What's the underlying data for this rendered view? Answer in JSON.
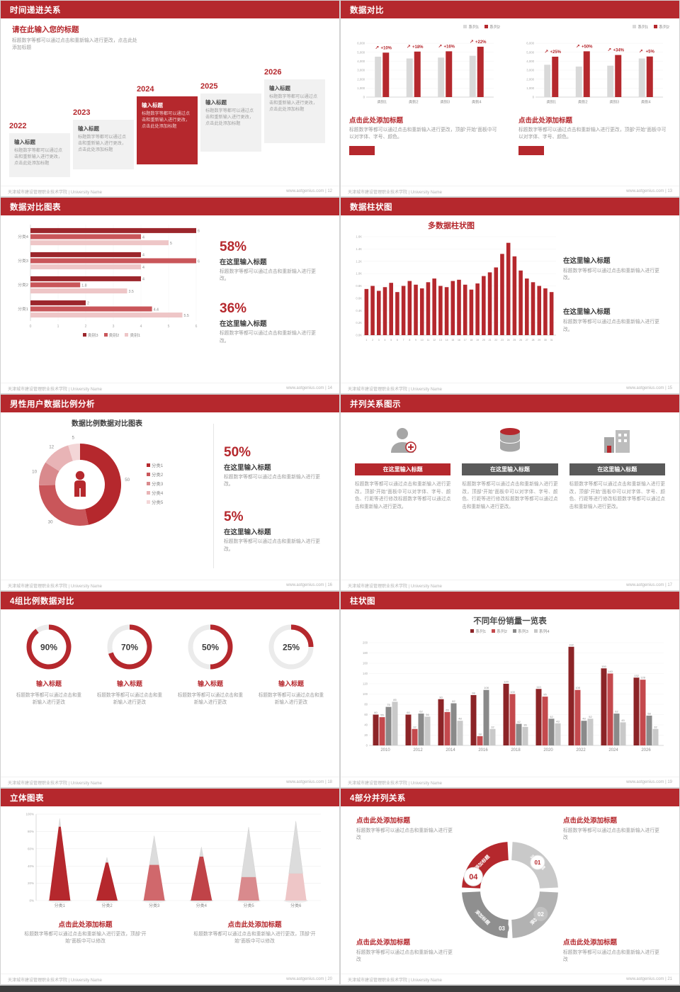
{
  "accent": "#b5282d",
  "footer": {
    "left": "天津城市建设管理职业技术学院 | University Name"
  },
  "slides": [
    {
      "title": "时间递进关系",
      "footer_right": "www.aotgenius.com | 12",
      "intro_title": "请在此输入您的标题",
      "intro_body": "标题数字等都可以通过点击和重新输入进行更改，点击此处添加标题",
      "steps": [
        {
          "year": "2022",
          "head": "输入标题",
          "body": "标题数字等都可以通过点击和重新输入进行更改，点击此处添加标题"
        },
        {
          "year": "2023",
          "head": "输入标题",
          "body": "标题数字等都可以通过点击和重新输入进行更改，点击此处添加标题"
        },
        {
          "year": "2024",
          "head": "输入标题",
          "body": "标题数字等都可以通过点击和重新输入进行更改，点击此处添加标题"
        },
        {
          "year": "2025",
          "head": "输入标题",
          "body": "标题数字等都可以通过点击和重新输入进行更改，点击此处添加标题"
        },
        {
          "year": "2026",
          "head": "输入标题",
          "body": "标题数字等都可以通过点击和重新输入进行更改，点击此处添加标题"
        }
      ]
    },
    {
      "title": "数据对比",
      "footer_right": "www.aotgenius.com | 13",
      "left": {
        "heading": "点击此处添加标题",
        "body": "标题数字等都可以通过点击和重新输入进行更改，顶部“开始”面板中可以对字体、字号、颜色。"
      },
      "right": {
        "heading": "点击此处添加标题",
        "body": "标题数字等都可以通过点击和重新输入进行更改，顶部“开始”面板中可以对字体、字号、颜色。"
      }
    },
    {
      "title": "数据对比图表",
      "footer_right": "www.aotgenius.com | 14",
      "stats": [
        {
          "value": "58%",
          "heading": "在这里输入标题",
          "body": "标题数字等都可以通过点击和重新输入进行更改。"
        },
        {
          "value": "36%",
          "heading": "在这里输入标题",
          "body": "标题数字等都可以通过点击和重新输入进行更改。"
        }
      ]
    },
    {
      "title": "数据柱状图",
      "footer_right": "www.aotgenius.com | 15",
      "chart_title": "多数据柱状图",
      "notes": [
        {
          "heading": "在这里输入标题",
          "body": "标题数字等都可以通过点击和重新输入进行更改。"
        },
        {
          "heading": "在这里输入标题",
          "body": "标题数字等都可以通过点击和重新输入进行更改。"
        }
      ]
    },
    {
      "title": "男性用户数据比例分析",
      "footer_right": "www.aotgenius.com | 16",
      "chart_title": "数据比例数据对比图表",
      "stats": [
        {
          "value": "50%",
          "heading": "在这里输入标题",
          "body": "标题数字等都可以通过点击和重新输入进行更改。"
        },
        {
          "value": "5%",
          "heading": "在这里输入标题",
          "body": "标题数字等都可以通过点击和重新输入进行更改。"
        }
      ]
    },
    {
      "title": "并列关系图示",
      "footer_right": "www.aotgenius.com | 17",
      "cols": [
        {
          "icon": "nurse-icon",
          "header": "在这里输入标题",
          "header_bg": "#b5282d",
          "body": "标题数字等都可以通过点击和重新输入进行更改，顶部“开始”面板中可以对字体、字号、颜色、行距等进行修改标题数字等都可以通过点击和重新输入进行更改。"
        },
        {
          "icon": "database-icon",
          "header": "在这里输入标题",
          "header_bg": "#5a5a5a",
          "body": "标题数字等都可以通过点击和重新输入进行更改，顶部“开始”面板中可以对字体、字号、颜色、行距等进行修改标题数字等都可以通过点击和重新输入进行更改。"
        },
        {
          "icon": "building-icon",
          "header": "在这里输入标题",
          "header_bg": "#5a5a5a",
          "body": "标题数字等都可以通过点击和重新输入进行更改，顶部“开始”面板中可以对字体、字号、颜色、行距等进行修改标题数字等都可以通过点击和重新输入进行更改。"
        }
      ]
    },
    {
      "title": "4组比例数据对比",
      "footer_right": "www.aotgenius.com | 18",
      "items": [
        {
          "heading": "输入标题",
          "body": "标题数字等都可以通过点击和重新输入进行更改"
        },
        {
          "heading": "输入标题",
          "body": "标题数字等都可以通过点击和重新输入进行更改"
        },
        {
          "heading": "输入标题",
          "body": "标题数字等都可以通过点击和重新输入进行更改"
        },
        {
          "heading": "输入标题",
          "body": "标题数字等都可以通过点击和重新输入进行更改"
        }
      ]
    },
    {
      "title": "柱状图",
      "footer_right": "www.aotgenius.com | 19",
      "chart_title": "不同年份销量一览表"
    },
    {
      "title": "立体图表",
      "footer_right": "www.aotgenius.com | 20",
      "notes": [
        {
          "heading": "点击此处添加标题",
          "body": "标题数字等都可以通过点击和重新输入进行更改，顶部“开始”面板中可以修改"
        },
        {
          "heading": "点击此处添加标题",
          "body": "标题数字等都可以通过点击和重新输入进行更改，顶部“开始”面板中可以修改"
        }
      ]
    },
    {
      "title": "4部分并列关系",
      "footer_right": "www.aotgenius.com | 21",
      "corners": [
        {
          "heading": "点击此处添加标题",
          "body": "标题数字等都可以通过点击和重新输入进行更改"
        },
        {
          "heading": "点击此处添加标题",
          "body": "标题数字等都可以通过点击和重新输入进行更改"
        },
        {
          "heading": "点击此处添加标题",
          "body": "标题数字等都可以通过点击和重新输入进行更改"
        },
        {
          "heading": "点击此处添加标题",
          "body": "标题数字等都可以通过点击和重新输入进行更改"
        }
      ]
    }
  ],
  "chart_data": [
    {
      "type": "bar",
      "render": "minibar",
      "categories": [
        "类别1",
        "类别2",
        "类别3",
        "类别4"
      ],
      "series": [
        {
          "name": "系列1",
          "color": "#d9d9d9",
          "values": [
            4500,
            4300,
            4400,
            4600
          ]
        },
        {
          "name": "系列2",
          "color": "#b5282d",
          "values": [
            4950,
            5070,
            5100,
            5610
          ]
        }
      ],
      "growth_labels": [
        "+10%",
        "+18%",
        "+16%",
        "+22%"
      ],
      "ylim": [
        0,
        6000
      ],
      "yticks": [
        "6,000",
        "5,000",
        "4,000",
        "3,000",
        "2,000",
        "1,000",
        "0"
      ]
    },
    {
      "type": "bar",
      "render": "minibar",
      "categories": [
        "类别1",
        "类别2",
        "类别3",
        "类别4"
      ],
      "series": [
        {
          "name": "系列1",
          "color": "#d9d9d9",
          "values": [
            3600,
            3400,
            3500,
            4300
          ]
        },
        {
          "name": "系列2",
          "color": "#b5282d",
          "values": [
            4500,
            5100,
            4690,
            4520
          ]
        }
      ],
      "growth_labels": [
        "+25%",
        "+50%",
        "+34%",
        "+5%"
      ],
      "ylim": [
        0,
        6000
      ],
      "yticks": [
        "6,000",
        "5,000",
        "4,000",
        "3,000",
        "2,000",
        "1,000",
        "0"
      ]
    },
    {
      "type": "bar",
      "render": "hbar",
      "orientation": "horizontal",
      "categories": [
        "分类4",
        "分类3",
        "分类2",
        "分类1"
      ],
      "series": [
        {
          "name": "类别3",
          "color": "#9c262c",
          "values": [
            6,
            4,
            4,
            2
          ]
        },
        {
          "name": "类别2",
          "color": "#c9565a",
          "values": [
            4,
            6,
            1.8,
            4.4
          ]
        },
        {
          "name": "类别1",
          "color": "#eec6c7",
          "values": [
            5,
            4,
            3.5,
            5.5
          ]
        }
      ],
      "x": [],
      "xlim": [
        0,
        6
      ],
      "xticks": [
        "0",
        "1",
        "2",
        "3",
        "4",
        "5",
        "6"
      ]
    },
    {
      "type": "bar",
      "render": "dense",
      "color": "#b5282d",
      "x": [
        "1",
        "2",
        "3",
        "4",
        "5",
        "6",
        "7",
        "8",
        "9",
        "10",
        "11",
        "12",
        "13",
        "14",
        "15",
        "16",
        "17",
        "18",
        "19",
        "20",
        "21",
        "22",
        "23",
        "24",
        "25",
        "26",
        "27",
        "28",
        "29",
        "30",
        "31"
      ],
      "values": [
        0.75,
        0.8,
        0.72,
        0.78,
        0.85,
        0.7,
        0.8,
        0.88,
        0.82,
        0.76,
        0.86,
        0.92,
        0.8,
        0.78,
        0.88,
        0.9,
        0.82,
        0.74,
        0.84,
        0.96,
        1.02,
        1.1,
        1.32,
        1.5,
        1.28,
        1.05,
        0.92,
        0.86,
        0.8,
        0.76,
        0.7
      ],
      "ylim": [
        0,
        1.6
      ],
      "yticks": [
        "1.6K",
        "1.4K",
        "1.2K",
        "1.0K",
        "0.8K",
        "0.6K",
        "0.4K",
        "0.2K",
        "0.0K"
      ]
    },
    {
      "type": "pie",
      "render": "donut",
      "donut": true,
      "center_icon": "male-user-icon",
      "segments": [
        {
          "label": "分类1",
          "value": 50,
          "color": "#b5282d"
        },
        {
          "label": "分类2",
          "value": 30,
          "color": "#c9565a"
        },
        {
          "label": "分类3",
          "value": 10,
          "color": "#d98a8d"
        },
        {
          "label": "分类4",
          "value": 12,
          "color": "#e8b4b6"
        },
        {
          "label": "分类5",
          "value": 5,
          "color": "#f3d6d7"
        }
      ]
    },
    {
      "type": "pie",
      "render": "rings",
      "values": [
        90,
        70,
        50,
        25
      ],
      "color": "#b5282d",
      "track": "#ebebeb"
    },
    {
      "type": "bar",
      "render": "groupbar",
      "categories": [
        "2010",
        "2012",
        "2014",
        "2016",
        "2018",
        "2020",
        "2022",
        "2024",
        "2026"
      ],
      "series": [
        {
          "name": "系列1",
          "color": "#8c2427",
          "values": [
            60,
            60,
            90,
            98,
            120,
            110,
            192,
            150,
            132
          ]
        },
        {
          "name": "系列2",
          "color": "#c4494d",
          "values": [
            55,
            32,
            65,
            18,
            100,
            95,
            108,
            140,
            128
          ]
        },
        {
          "name": "系列3",
          "color": "#8a8a8a",
          "values": [
            75,
            62,
            82,
            108,
            42,
            52,
            48,
            62,
            58
          ]
        },
        {
          "name": "系列4",
          "color": "#c9c9c9",
          "values": [
            85,
            56,
            48,
            32,
            36,
            43,
            52,
            45,
            32
          ]
        }
      ],
      "ylim": [
        0,
        200
      ],
      "yticks": [
        0,
        20,
        40,
        60,
        80,
        100,
        120,
        140,
        160,
        180,
        200
      ]
    },
    {
      "type": "bar",
      "render": "cones",
      "variant": "3d-cone",
      "categories": [
        "分类1",
        "分类2",
        "分类3",
        "分类4",
        "分类5",
        "分类6"
      ],
      "yticks": [
        "100%",
        "80%",
        "60%",
        "40%",
        "20%",
        "0%"
      ],
      "cones": [
        {
          "height": 0.95,
          "filled": 0.9,
          "color": "#b5282d"
        },
        {
          "height": 0.5,
          "filled": 0.88,
          "color": "#b5282d"
        },
        {
          "height": 0.75,
          "filled": 0.55,
          "color": "#d0686c"
        },
        {
          "height": 0.62,
          "filled": 0.82,
          "color": "#c04348"
        },
        {
          "height": 0.85,
          "filled": 0.32,
          "color": "#d98a8d"
        },
        {
          "height": 0.92,
          "filled": 0.34,
          "color": "#eec6c7"
        }
      ]
    },
    {
      "type": "pie",
      "render": "quad",
      "segments": [
        {
          "num": "04",
          "label": "添加标题",
          "color": "#b5282d",
          "badge": "accent-large"
        },
        {
          "num": "01",
          "label": "添加标题",
          "color": "#c9c9c9",
          "badge": "light"
        },
        {
          "num": "02",
          "label": "添加标题",
          "color": "#b2b2b2",
          "badge": "mid"
        },
        {
          "num": "03",
          "label": "添加标题",
          "color": "#8f8f8f",
          "badge": "dark"
        }
      ]
    }
  ]
}
